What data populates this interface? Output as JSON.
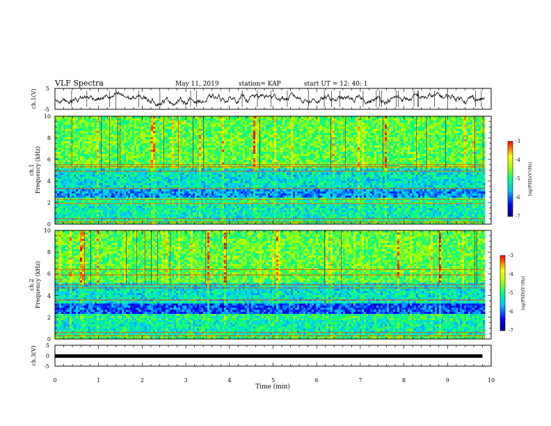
{
  "header": {
    "title": "VLF Spectra",
    "date": "May 11, 2019",
    "station": "station= KAP",
    "start": "start  UT  =   12: 40: 1"
  },
  "chart_data": [
    {
      "type": "line",
      "name": "channel-1-waveform",
      "ylabel": "ch.1(V)",
      "ylim": [
        -5,
        5
      ],
      "y_ticks": [
        "5",
        "-5"
      ],
      "xlim": [
        0,
        10
      ],
      "x_extent_min": 9.8,
      "note_values": "noisy waveform oscillating roughly between -4.5 and 4 V"
    },
    {
      "type": "heatmap",
      "name": "channel-1-spectrogram",
      "ylabel_line1": "ch.1",
      "ylabel_line2": "Frequency (kHz)",
      "ylim": [
        0,
        10
      ],
      "y_ticks": [
        "0",
        "2",
        "4",
        "6",
        "8",
        "10"
      ],
      "xlim": [
        0,
        10
      ],
      "colorbar": {
        "min": -7,
        "max": -3,
        "ticks": [
          "-3",
          "-4",
          "-5",
          "-6",
          "-7"
        ],
        "label": "log(PSD)(V²/Hz)"
      }
    },
    {
      "type": "heatmap",
      "name": "channel-2-spectrogram",
      "ylabel_line1": "ch.2",
      "ylabel_line2": "Frequency (kHz)",
      "ylim": [
        0,
        10
      ],
      "y_ticks": [
        "0",
        "2",
        "4",
        "6",
        "8",
        "10"
      ],
      "xlim": [
        0,
        10
      ],
      "colorbar": {
        "min": -7,
        "max": -3,
        "ticks": [
          "-3",
          "-4",
          "-5",
          "-6",
          "-7"
        ],
        "label": "log(PSD)(V²/Hz)"
      }
    },
    {
      "type": "line",
      "name": "channel-3-waveform",
      "ylabel": "ch.3(V)",
      "ylim": [
        -5,
        5
      ],
      "y_ticks": [
        "5",
        "0",
        "-5"
      ],
      "xlim": [
        0,
        10
      ],
      "constant_value": 0,
      "x_extent_min": 9.8
    }
  ],
  "xaxis": {
    "label": "Time  (min)",
    "ticks": [
      "0",
      "1",
      "2",
      "3",
      "4",
      "5",
      "6",
      "7",
      "8",
      "9",
      "10"
    ]
  },
  "colors": {
    "spec_low": "#0000c8",
    "spec_mid": "#00ff60",
    "spec_high": "#ff0000"
  }
}
